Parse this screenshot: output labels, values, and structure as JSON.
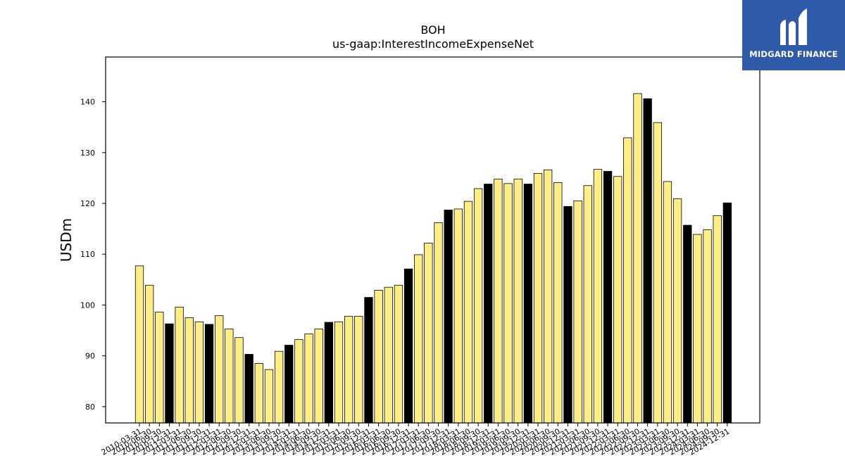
{
  "chart_data": {
    "type": "bar",
    "title": "BOH",
    "subtitle": "us-gaap:InterestIncomeExpenseNet",
    "ylabel": "USDm",
    "xlabel": "",
    "ylim": [
      76.8,
      148.8
    ],
    "yticks": [
      80,
      90,
      100,
      110,
      120,
      130,
      140
    ],
    "grid": false,
    "colors": {
      "default": "#ffee88",
      "q4": "#000000",
      "edge": "#000000"
    },
    "categories": [
      "2010-03-31",
      "2010-06-30",
      "2010-09-30",
      "2010-12-31",
      "2011-03-31",
      "2011-06-30",
      "2011-09-30",
      "2011-12-31",
      "2012-03-31",
      "2012-06-30",
      "2012-09-30",
      "2012-12-31",
      "2013-03-31",
      "2013-06-30",
      "2013-09-30",
      "2013-12-31",
      "2014-03-31",
      "2014-06-30",
      "2014-09-30",
      "2014-12-31",
      "2015-03-31",
      "2015-06-30",
      "2015-09-30",
      "2015-12-31",
      "2016-03-31",
      "2016-06-30",
      "2016-09-30",
      "2016-12-31",
      "2017-03-31",
      "2017-06-30",
      "2017-09-30",
      "2017-12-31",
      "2018-03-31",
      "2018-06-30",
      "2018-09-30",
      "2018-12-31",
      "2019-03-31",
      "2019-06-30",
      "2019-09-30",
      "2019-12-31",
      "2020-03-31",
      "2020-06-30",
      "2020-09-30",
      "2020-12-31",
      "2021-03-31",
      "2021-06-30",
      "2021-09-30",
      "2021-12-31",
      "2022-03-31",
      "2022-06-30",
      "2022-09-30",
      "2022-12-31",
      "2023-03-31",
      "2023-06-30",
      "2023-09-30",
      "2023-12-31",
      "2024-03-31",
      "2024-06-30",
      "2024-09-30",
      "2024-12-31"
    ],
    "values": [
      107.7,
      103.9,
      98.6,
      96.3,
      99.6,
      97.5,
      96.7,
      96.2,
      97.9,
      95.3,
      93.6,
      90.3,
      88.5,
      87.3,
      90.9,
      92.1,
      93.2,
      94.3,
      95.3,
      96.6,
      96.7,
      97.8,
      97.8,
      101.5,
      102.9,
      103.5,
      103.9,
      107.1,
      109.9,
      112.2,
      116.2,
      118.7,
      118.9,
      120.4,
      122.9,
      123.8,
      124.8,
      123.9,
      124.8,
      123.8,
      125.9,
      126.6,
      124.1,
      119.4,
      120.5,
      123.5,
      126.7,
      126.3,
      125.3,
      132.9,
      141.6,
      140.6,
      135.9,
      124.3,
      120.9,
      115.7,
      113.9,
      114.8,
      117.6,
      120.1
    ]
  },
  "logo": {
    "text": "MIDGARD FINANCE"
  }
}
